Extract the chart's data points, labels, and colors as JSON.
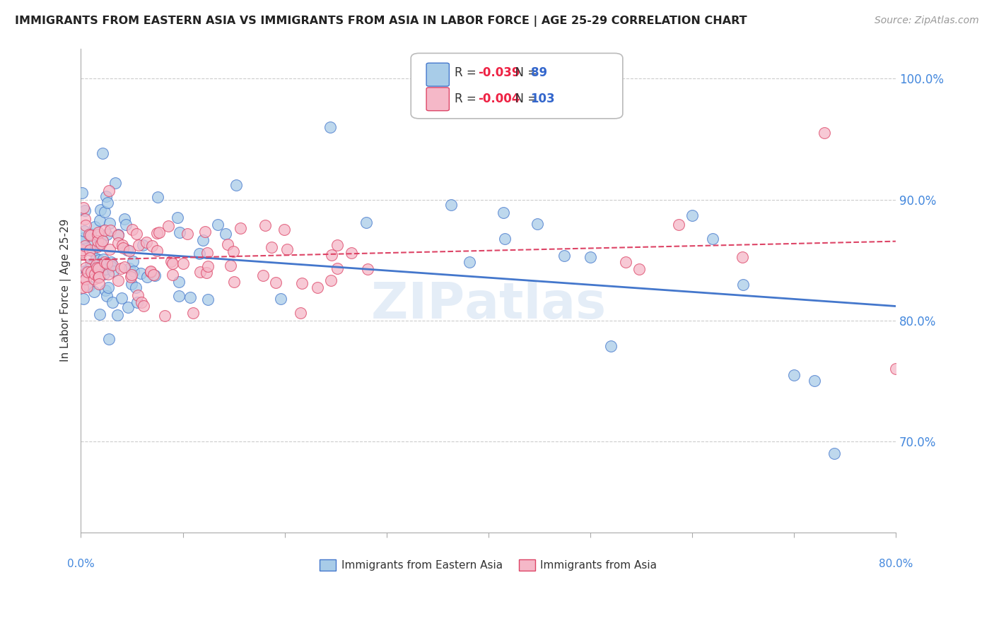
{
  "title": "IMMIGRANTS FROM EASTERN ASIA VS IMMIGRANTS FROM ASIA IN LABOR FORCE | AGE 25-29 CORRELATION CHART",
  "source": "Source: ZipAtlas.com",
  "ylabel": "In Labor Force | Age 25-29",
  "ytick_labels": [
    "70.0%",
    "80.0%",
    "90.0%",
    "100.0%"
  ],
  "ytick_values": [
    0.7,
    0.8,
    0.9,
    1.0
  ],
  "xlim": [
    0.0,
    0.8
  ],
  "ylim": [
    0.625,
    1.025
  ],
  "r_blue": -0.039,
  "n_blue": 89,
  "r_pink": -0.004,
  "n_pink": 103,
  "color_blue": "#a8cce8",
  "color_pink": "#f5b8c8",
  "line_color_blue": "#4477cc",
  "line_color_pink": "#dd4466",
  "legend_label_blue": "Immigrants from Eastern Asia",
  "legend_label_pink": "Immigrants from Asia",
  "background_color": "#ffffff"
}
